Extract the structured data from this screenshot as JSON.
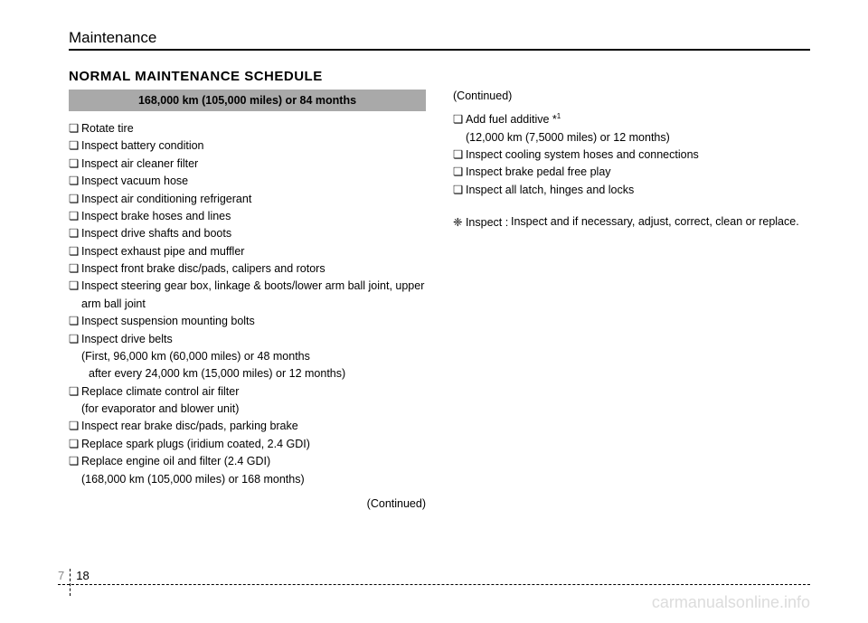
{
  "header": {
    "title": "Maintenance"
  },
  "section_title": "NORMAL MAINTENANCE SCHEDULE",
  "left": {
    "interval": "168,000 km (105,000 miles) or 84 months",
    "items": [
      "Rotate tire",
      "Inspect battery condition",
      "Inspect air cleaner filter",
      "Inspect vacuum hose",
      "Inspect air conditioning refrigerant",
      "Inspect brake hoses and lines",
      "Inspect drive shafts and boots",
      "Inspect exhaust pipe and muffler",
      "Inspect front brake disc/pads, calipers and rotors",
      "Inspect steering gear box, linkage & boots/lower arm ball joint, upper arm ball joint",
      "Inspect suspension mounting bolts",
      "Inspect drive belts"
    ],
    "drive_belts_sub1": "(First, 96,000 km (60,000 miles) or 48 months",
    "drive_belts_sub2": "after every 24,000 km (15,000 miles) or 12 months)",
    "item_climate": "Replace climate control air filter",
    "climate_sub": "(for evaporator and blower unit)",
    "item_rear_brake": "Inspect rear brake disc/pads, parking brake",
    "item_spark": "Replace spark plugs (iridium coated, 2.4 GDI)",
    "item_oil": "Replace engine oil and filter (2.4 GDI)",
    "oil_sub": "(168,000 km (105,000 miles) or 168 months)",
    "continued": "(Continued)"
  },
  "right": {
    "continued_top": "(Continued)",
    "item_fuel": "Add fuel additive *",
    "fuel_sup": "1",
    "fuel_sub": "(12,000 km (7,5000 miles) or 12 months)",
    "items_rest": [
      "Inspect cooling system hoses and connections",
      "Inspect brake pedal free play",
      "Inspect all latch, hinges and locks"
    ],
    "note_label": "❈ Inspect :",
    "note_text": "Inspect and if necessary, adjust, correct, clean or replace."
  },
  "footer": {
    "chapter": "7",
    "page": "18",
    "watermark": "carmanualsonline.info"
  },
  "style": {
    "bg": "#ffffff",
    "header_bg": "#a9a9a9",
    "text_color": "#000000",
    "watermark_color": "#dcdcdc",
    "body_fontsize": 12.5,
    "title_fontsize": 15
  }
}
